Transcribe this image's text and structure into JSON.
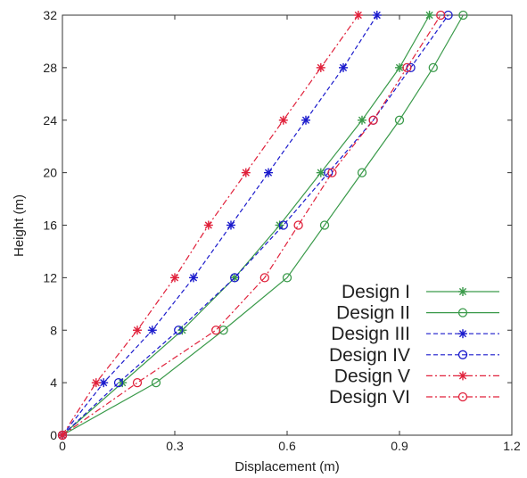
{
  "chart_data": {
    "type": "line",
    "xlabel": "Displacement (m)",
    "ylabel": "Height (m)",
    "xlim": [
      0,
      1.2
    ],
    "ylim": [
      0,
      32
    ],
    "x_ticks": [
      0,
      0.3,
      0.6,
      0.9,
      1.2
    ],
    "y_ticks": [
      0,
      4,
      8,
      12,
      16,
      20,
      24,
      28,
      32
    ],
    "grid": false,
    "legend_position": "bottom-right",
    "series": [
      {
        "name": "Design I",
        "color": "#3a9a4a",
        "line": "solid",
        "marker": "asterisk",
        "points": [
          [
            0,
            0
          ],
          [
            0.16,
            4
          ],
          [
            0.32,
            8
          ],
          [
            0.46,
            12
          ],
          [
            0.58,
            16
          ],
          [
            0.69,
            20
          ],
          [
            0.8,
            24
          ],
          [
            0.9,
            28
          ],
          [
            0.98,
            32
          ]
        ]
      },
      {
        "name": "Design II",
        "color": "#3a9a4a",
        "line": "solid",
        "marker": "circle",
        "points": [
          [
            0,
            0
          ],
          [
            0.25,
            4
          ],
          [
            0.43,
            8
          ],
          [
            0.6,
            12
          ],
          [
            0.7,
            16
          ],
          [
            0.8,
            20
          ],
          [
            0.9,
            24
          ],
          [
            0.99,
            28
          ],
          [
            1.07,
            32
          ]
        ]
      },
      {
        "name": "Design III",
        "color": "#1a1acc",
        "line": "dashed",
        "marker": "asterisk",
        "points": [
          [
            0,
            0
          ],
          [
            0.11,
            4
          ],
          [
            0.24,
            8
          ],
          [
            0.35,
            12
          ],
          [
            0.45,
            16
          ],
          [
            0.55,
            20
          ],
          [
            0.65,
            24
          ],
          [
            0.75,
            28
          ],
          [
            0.84,
            32
          ]
        ]
      },
      {
        "name": "Design IV",
        "color": "#1a1acc",
        "line": "dashed",
        "marker": "circle",
        "points": [
          [
            0,
            0
          ],
          [
            0.15,
            4
          ],
          [
            0.31,
            8
          ],
          [
            0.46,
            12
          ],
          [
            0.59,
            16
          ],
          [
            0.71,
            20
          ],
          [
            0.83,
            24
          ],
          [
            0.93,
            28
          ],
          [
            1.03,
            32
          ]
        ]
      },
      {
        "name": "Design V",
        "color": "#e0203a",
        "line": "dashdot",
        "marker": "asterisk",
        "points": [
          [
            0,
            0
          ],
          [
            0.09,
            4
          ],
          [
            0.2,
            8
          ],
          [
            0.3,
            12
          ],
          [
            0.39,
            16
          ],
          [
            0.49,
            20
          ],
          [
            0.59,
            24
          ],
          [
            0.69,
            28
          ],
          [
            0.79,
            32
          ]
        ]
      },
      {
        "name": "Design VI",
        "color": "#e0203a",
        "line": "dashdot",
        "marker": "circle",
        "points": [
          [
            0,
            0
          ],
          [
            0.2,
            4
          ],
          [
            0.41,
            8
          ],
          [
            0.54,
            12
          ],
          [
            0.63,
            16
          ],
          [
            0.72,
            20
          ],
          [
            0.83,
            24
          ],
          [
            0.92,
            28
          ],
          [
            1.01,
            32
          ]
        ]
      }
    ]
  }
}
